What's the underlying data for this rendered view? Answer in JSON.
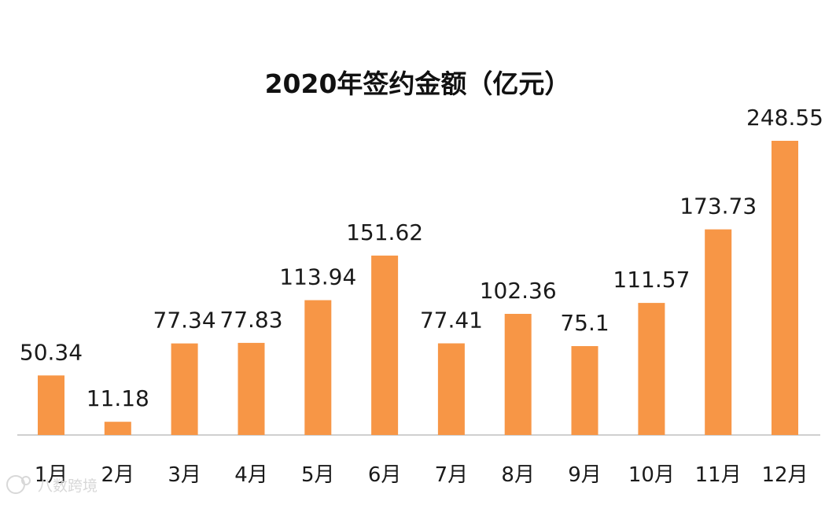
{
  "chart_data": {
    "type": "bar",
    "title": "2020年签约金额（亿元）",
    "xlabel": "",
    "ylabel": "",
    "categories": [
      "1月",
      "2月",
      "3月",
      "4月",
      "5月",
      "6月",
      "7月",
      "8月",
      "9月",
      "10月",
      "11月",
      "12月"
    ],
    "values": [
      50.34,
      11.18,
      77.34,
      77.83,
      113.94,
      151.62,
      77.41,
      102.36,
      75.1,
      111.57,
      173.73,
      248.55
    ],
    "value_labels": [
      "50.34",
      "11.18",
      "77.34",
      "77.83",
      "113.94",
      "151.62",
      "77.41",
      "102.36",
      "75.1",
      "111.57",
      "173.73",
      "248.55"
    ],
    "ylim": [
      0,
      250
    ],
    "grid": false,
    "legend": "none",
    "bar_color": "#F79646",
    "axis_color": "#BFBFBF"
  },
  "watermark": {
    "text": "八数跨境",
    "color": "#D8D8D8"
  }
}
